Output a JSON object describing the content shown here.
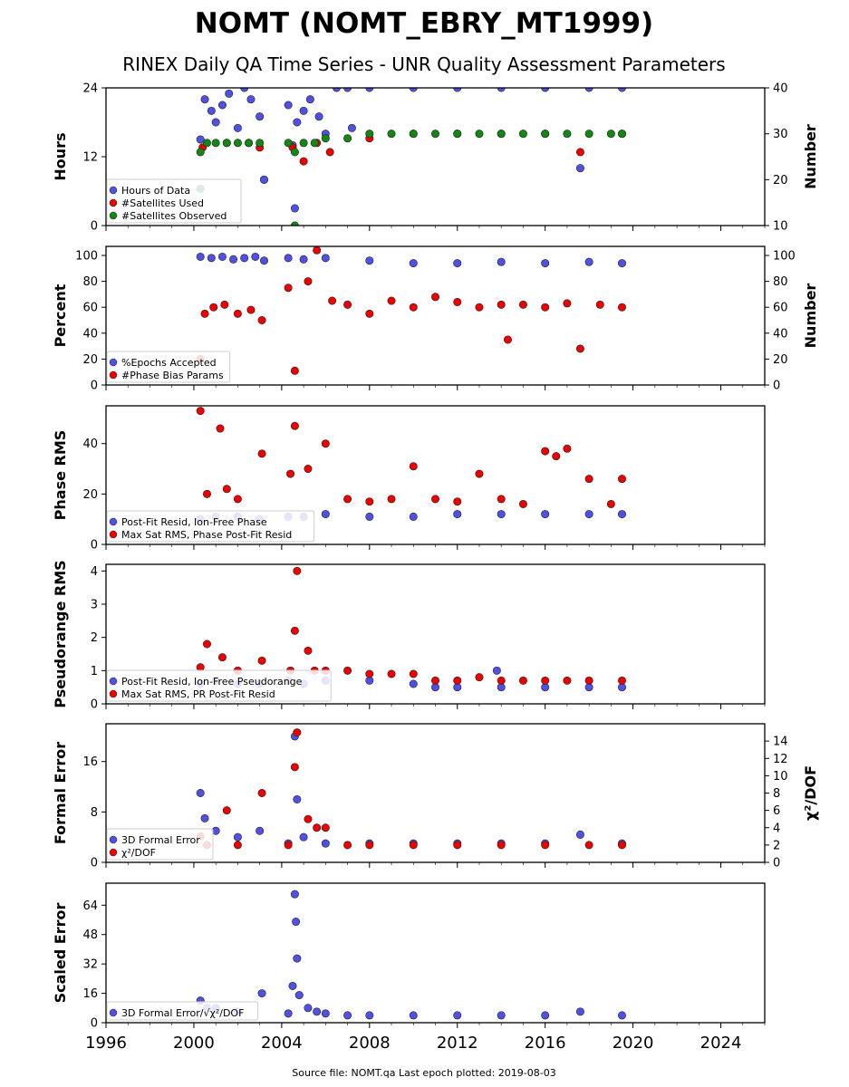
{
  "title": "NOMT (NOMT_EBRY_MT1999)",
  "subtitle": "RINEX Daily QA Time Series - UNR Quality Assessment Parameters",
  "footer": "Source file: NOMT.qa Last epoch plotted: 2019-08-03",
  "colors": {
    "blue": "#5050e6",
    "red": "#ee0000",
    "green": "#118811"
  },
  "x_axis": {
    "range": [
      1996,
      2026
    ],
    "ticks": [
      "1996",
      "2000",
      "2004",
      "2008",
      "2012",
      "2016",
      "2020",
      "2024"
    ]
  },
  "chart_data": [
    {
      "type": "scatter",
      "ylabel": "Hours",
      "ylabel_right": "Number",
      "ylim": [
        0,
        24
      ],
      "yticks": [
        "0",
        "12",
        "24"
      ],
      "ylim_right": [
        10,
        40
      ],
      "yticks_right": [
        "10",
        "20",
        "30",
        "40"
      ],
      "legend_position": "lower-left",
      "series": [
        {
          "name": "Hours of Data",
          "color": "blue",
          "axis": "left",
          "x": [
            2000.3,
            2000.5,
            2000.8,
            2001.0,
            2001.3,
            2001.6,
            2002.0,
            2002.3,
            2002.6,
            2003.0,
            2003.2,
            2004.3,
            2004.5,
            2004.7,
            2005.0,
            2005.3,
            2005.7,
            2006.0,
            2006.5,
            2007.0,
            2008.0,
            2010.0,
            2012.0,
            2014.0,
            2016.0,
            2018.0,
            2019.5,
            2004.6,
            2003.2,
            2007.2,
            2017.6
          ],
          "y": [
            15,
            22,
            20,
            18,
            21,
            23,
            17,
            24,
            22,
            19,
            8,
            21,
            14,
            18,
            20,
            22,
            19,
            16,
            24,
            24,
            24,
            24,
            24,
            24,
            24,
            24,
            24,
            3,
            8,
            17,
            10
          ]
        },
        {
          "name": "#Satellites Used",
          "color": "red",
          "axis": "right",
          "x": [
            2000.4,
            2001.5,
            2002.5,
            2003.0,
            2004.5,
            2005.0,
            2005.6,
            2006.2,
            2008.0,
            2010.0,
            2012.0,
            2014.0,
            2016.0,
            2017.6,
            2019.5
          ],
          "y": [
            27,
            28,
            28,
            27,
            27,
            24,
            28,
            26,
            29,
            30,
            30,
            30,
            30,
            26,
            30
          ]
        },
        {
          "name": "#Satellites Observed",
          "color": "green",
          "axis": "right",
          "x": [
            2000.3,
            2000.6,
            2001.0,
            2001.5,
            2002.0,
            2002.5,
            2003.0,
            2004.3,
            2004.6,
            2005.0,
            2005.5,
            2006.0,
            2007.0,
            2008.0,
            2009.0,
            2010.0,
            2011.0,
            2012.0,
            2013.0,
            2014.0,
            2015.0,
            2016.0,
            2017.0,
            2018.0,
            2019.0,
            2019.5,
            2000.3,
            2004.6
          ],
          "y": [
            26,
            28,
            28,
            28,
            28,
            28,
            28,
            28,
            26,
            28,
            28,
            29,
            29,
            30,
            30,
            30,
            30,
            30,
            30,
            30,
            30,
            30,
            30,
            30,
            30,
            30,
            18,
            10
          ]
        }
      ]
    },
    {
      "type": "scatter",
      "ylabel": "Percent",
      "ylabel_right": "Number",
      "ylim": [
        0,
        107
      ],
      "yticks": [
        "0",
        "20",
        "40",
        "60",
        "80",
        "100"
      ],
      "ylim_right": [
        0,
        107
      ],
      "yticks_right": [
        "0",
        "20",
        "40",
        "60",
        "80",
        "100"
      ],
      "legend_position": "lower-left",
      "series": [
        {
          "name": "%Epochs Accepted",
          "color": "blue",
          "axis": "left",
          "x": [
            2000.3,
            2000.8,
            2001.3,
            2001.8,
            2002.3,
            2002.8,
            2003.2,
            2004.3,
            2005.0,
            2006.0,
            2008.0,
            2010.0,
            2012.0,
            2014.0,
            2016.0,
            2018.0,
            2019.5
          ],
          "y": [
            99,
            98,
            99,
            97,
            98,
            99,
            96,
            98,
            97,
            98,
            96,
            94,
            94,
            95,
            94,
            95,
            94
          ]
        },
        {
          "name": "#Phase Bias Params",
          "color": "red",
          "axis": "right",
          "x": [
            2000.3,
            2000.5,
            2000.9,
            2001.4,
            2002.0,
            2002.6,
            2003.1,
            2004.3,
            2004.6,
            2005.2,
            2005.6,
            2006.3,
            2007.0,
            2008.0,
            2009.0,
            2010.0,
            2011.0,
            2012.0,
            2013.0,
            2014.0,
            2014.3,
            2015.0,
            2016.0,
            2017.0,
            2017.6,
            2018.5,
            2019.5
          ],
          "y": [
            20,
            55,
            60,
            62,
            55,
            58,
            50,
            75,
            11,
            80,
            104,
            65,
            62,
            55,
            65,
            60,
            68,
            64,
            60,
            62,
            35,
            62,
            60,
            63,
            28,
            62,
            60
          ]
        }
      ]
    },
    {
      "type": "scatter",
      "ylabel": "Phase RMS",
      "ylim": [
        0,
        55
      ],
      "yticks": [
        "0",
        "20",
        "40"
      ],
      "legend_position": "lower-left",
      "series": [
        {
          "name": "Post-Fit Resid, Ion-Free Phase",
          "color": "blue",
          "axis": "left",
          "x": [
            2000.3,
            2001.0,
            2002.0,
            2003.0,
            2004.3,
            2005.0,
            2006.0,
            2008.0,
            2010.0,
            2012.0,
            2014.0,
            2016.0,
            2018.0,
            2019.5
          ],
          "y": [
            10,
            11,
            11,
            10,
            11,
            11,
            12,
            11,
            11,
            12,
            12,
            12,
            12,
            12
          ]
        },
        {
          "name": "Max Sat RMS, Phase Post-Fit Resid",
          "color": "red",
          "axis": "left",
          "x": [
            2000.3,
            2000.6,
            2001.2,
            2001.5,
            2002.0,
            2003.1,
            2004.4,
            2004.6,
            2005.2,
            2006.0,
            2007.0,
            2008.0,
            2009.0,
            2010.0,
            2011.0,
            2012.0,
            2013.0,
            2014.0,
            2015.0,
            2016.0,
            2016.5,
            2017.0,
            2018.0,
            2019.0,
            2019.5
          ],
          "y": [
            53,
            20,
            46,
            22,
            18,
            36,
            28,
            47,
            30,
            40,
            18,
            17,
            18,
            31,
            18,
            17,
            28,
            18,
            16,
            37,
            35,
            38,
            26,
            16,
            26
          ]
        }
      ]
    },
    {
      "type": "scatter",
      "ylabel": "Pseudorange RMS",
      "ylim": [
        0,
        4.2
      ],
      "yticks": [
        "0",
        "1",
        "2",
        "3",
        "4"
      ],
      "legend_position": "lower-left",
      "series": [
        {
          "name": "Post-Fit Resid, Ion-Free Pseudorange",
          "color": "blue",
          "axis": "left",
          "x": [
            2000.3,
            2001.0,
            2002.0,
            2003.0,
            2004.3,
            2005.0,
            2006.0,
            2008.0,
            2010.0,
            2011.0,
            2012.0,
            2013.8,
            2014.0,
            2016.0,
            2018.0,
            2019.5
          ],
          "y": [
            0.6,
            0.7,
            0.6,
            0.6,
            0.7,
            0.6,
            0.7,
            0.7,
            0.6,
            0.5,
            0.5,
            1.0,
            0.5,
            0.5,
            0.5,
            0.5
          ]
        },
        {
          "name": "Max Sat RMS, PR Post-Fit Resid",
          "color": "red",
          "axis": "left",
          "x": [
            2000.3,
            2000.6,
            2001.3,
            2002.0,
            2003.1,
            2004.4,
            2004.6,
            2004.7,
            2005.2,
            2005.5,
            2006.0,
            2007.0,
            2008.0,
            2009.0,
            2010.0,
            2011.0,
            2012.0,
            2013.0,
            2014.0,
            2015.0,
            2016.0,
            2017.0,
            2018.0,
            2019.5
          ],
          "y": [
            1.1,
            1.8,
            1.4,
            1.0,
            1.3,
            1.0,
            2.2,
            4.0,
            1.6,
            1.0,
            1.0,
            1.0,
            0.9,
            0.9,
            0.9,
            0.7,
            0.7,
            0.8,
            0.7,
            0.7,
            0.7,
            0.7,
            0.7,
            0.7
          ]
        }
      ]
    },
    {
      "type": "scatter",
      "ylabel": "Formal Error",
      "ylabel_right": "χ²/DOF",
      "ylim": [
        0,
        22
      ],
      "yticks": [
        "0",
        "8",
        "16"
      ],
      "ylim_right": [
        0,
        16
      ],
      "yticks_right": [
        "0",
        "2",
        "4",
        "6",
        "8",
        "10",
        "12",
        "14"
      ],
      "legend_position": "lower-left",
      "series": [
        {
          "name": "3D Formal Error",
          "color": "blue",
          "axis": "left",
          "x": [
            2000.3,
            2000.5,
            2001.0,
            2002.0,
            2003.0,
            2004.3,
            2004.6,
            2004.7,
            2005.0,
            2006.0,
            2008.0,
            2010.0,
            2012.0,
            2014.0,
            2016.0,
            2017.6,
            2019.5
          ],
          "y": [
            11,
            7,
            5,
            4,
            5,
            3,
            20,
            10,
            4,
            3,
            3,
            3,
            3,
            3,
            3,
            4.4,
            3
          ]
        },
        {
          "name": "χ²/DOF",
          "color": "red",
          "axis": "right",
          "x": [
            2000.3,
            2000.6,
            2001.5,
            2002.0,
            2003.1,
            2004.3,
            2004.6,
            2004.7,
            2005.2,
            2005.6,
            2006.0,
            2007.0,
            2008.0,
            2010.0,
            2012.0,
            2014.0,
            2016.0,
            2018.0,
            2019.5
          ],
          "y": [
            3,
            2,
            6,
            2,
            8,
            2,
            11,
            15,
            5,
            4,
            4,
            2,
            2,
            2,
            2,
            2,
            2,
            2,
            2
          ]
        }
      ]
    },
    {
      "type": "scatter",
      "ylabel": "Scaled Error",
      "ylim": [
        0,
        76
      ],
      "yticks": [
        "0",
        "16",
        "32",
        "48",
        "64"
      ],
      "legend_position": "lower-left",
      "series": [
        {
          "name": "3D Formal Error/√χ²/DOF",
          "color": "blue",
          "axis": "left",
          "x": [
            2000.3,
            2000.6,
            2001.0,
            2002.0,
            2003.1,
            2004.3,
            2004.5,
            2004.6,
            2004.65,
            2004.7,
            2004.8,
            2005.2,
            2005.6,
            2006.0,
            2007.0,
            2008.0,
            2010.0,
            2012.0,
            2014.0,
            2016.0,
            2017.6,
            2019.5
          ],
          "y": [
            12,
            8,
            8,
            6,
            16,
            5,
            20,
            70,
            55,
            35,
            15,
            8,
            6,
            5,
            4,
            4,
            4,
            4,
            4,
            4,
            6,
            4
          ]
        }
      ]
    }
  ]
}
